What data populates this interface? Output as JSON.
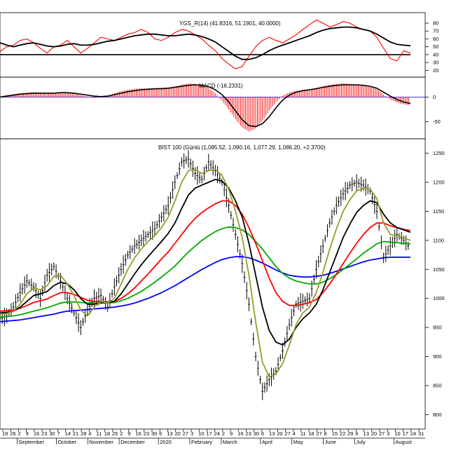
{
  "chart_data": [
    {
      "type": "line",
      "title": "YGS_R(14) (41.8316, 51.1901, 40.0000)",
      "ylim": [
        15,
        88
      ],
      "yticks": [
        20,
        30,
        40,
        50,
        60,
        70,
        80
      ],
      "reference_line": 40,
      "series": [
        {
          "color": "#ff0000",
          "values": [
            44,
            50,
            52,
            58,
            60,
            55,
            48,
            42,
            50,
            52,
            58,
            50,
            42,
            48,
            55,
            62,
            60,
            58,
            62,
            66,
            68,
            72,
            68,
            60,
            58,
            62,
            68,
            72,
            70,
            65,
            60,
            52,
            45,
            35,
            28,
            22,
            25,
            38,
            50,
            58,
            62,
            58,
            55,
            60,
            65,
            72,
            78,
            84,
            80,
            75,
            78,
            82,
            80,
            75,
            72,
            70,
            62,
            48,
            35,
            32,
            45,
            41.8
          ]
        },
        {
          "color": "#000000",
          "values": [
            55,
            52,
            50,
            52,
            54,
            55,
            53,
            51,
            50,
            51,
            53,
            54,
            52,
            52,
            53,
            55,
            57,
            58,
            60,
            62,
            64,
            65,
            66,
            66,
            65,
            64,
            64,
            65,
            66,
            65,
            63,
            60,
            56,
            50,
            44,
            38,
            34,
            34,
            36,
            40,
            45,
            49,
            52,
            55,
            58,
            61,
            64,
            68,
            71,
            73,
            74,
            75,
            75,
            74,
            72,
            70,
            66,
            61,
            56,
            53,
            52,
            51.2
          ]
        }
      ]
    },
    {
      "type": "bar",
      "title": "MACD (-16.2331)",
      "ylim": [
        -82,
        35
      ],
      "yticks": [
        0,
        -50
      ],
      "bar_color": "#ff0000",
      "values": [
        2,
        4,
        6,
        8,
        9,
        10,
        9,
        8,
        9,
        10,
        10,
        7,
        4,
        1,
        -2,
        0,
        3,
        8,
        12,
        15,
        17,
        18,
        18,
        18,
        19,
        20,
        22,
        25,
        28,
        27,
        24,
        18,
        8,
        -8,
        -25,
        -45,
        -62,
        -70,
        -64,
        -48,
        -28,
        -10,
        3,
        10,
        13,
        15,
        16,
        19,
        22,
        25,
        27,
        28,
        27,
        26,
        24,
        21,
        16,
        5,
        -5,
        -11,
        -15,
        -16.2
      ],
      "line_values": [
        0,
        2,
        4,
        6,
        7,
        8,
        8,
        8,
        8,
        9,
        9,
        8,
        6,
        4,
        2,
        1,
        2,
        5,
        8,
        11,
        13,
        15,
        16,
        17,
        17,
        18,
        20,
        22,
        24,
        25,
        24,
        21,
        15,
        5,
        -10,
        -28,
        -46,
        -58,
        -60,
        -54,
        -40,
        -22,
        -6,
        4,
        10,
        13,
        15,
        17,
        20,
        22,
        24,
        25,
        25,
        25,
        24,
        22,
        18,
        10,
        2,
        -5,
        -10,
        -13
      ]
    },
    {
      "type": "line",
      "title": "BIST 100 (Günlü (1,085.52, 1,090.16, 1,077.29, 1,086.20, +2.3700)",
      "ylim": [
        780,
        1270
      ],
      "yticks": [
        800,
        850,
        900,
        950,
        1000,
        1050,
        1100,
        1150,
        1200,
        1250
      ],
      "price_color": "#000000",
      "values": [
        965,
        970,
        985,
        1010,
        1030,
        1020,
        1000,
        1040,
        1055,
        1030,
        1000,
        975,
        950,
        980,
        1000,
        1005,
        985,
        1020,
        1050,
        1075,
        1090,
        1100,
        1110,
        1120,
        1140,
        1160,
        1200,
        1235,
        1240,
        1215,
        1205,
        1235,
        1220,
        1200,
        1160,
        1110,
        1060,
        990,
        900,
        840,
        860,
        875,
        910,
        955,
        990,
        995,
        1000,
        1050,
        1090,
        1130,
        1160,
        1180,
        1195,
        1200,
        1195,
        1185,
        1150,
        1070,
        1090,
        1110,
        1100,
        1086.2
      ],
      "series": [
        {
          "color": "#9a9a2a",
          "values": [
            972,
            974,
            978,
            990,
            1008,
            1018,
            1015,
            1022,
            1038,
            1040,
            1025,
            1005,
            980,
            970,
            985,
            995,
            992,
            1000,
            1025,
            1050,
            1070,
            1085,
            1098,
            1108,
            1122,
            1140,
            1168,
            1200,
            1220,
            1222,
            1215,
            1220,
            1222,
            1212,
            1188,
            1150,
            1105,
            1040,
            960,
            890,
            865,
            870,
            888,
            920,
            955,
            975,
            985,
            1010,
            1045,
            1085,
            1120,
            1150,
            1170,
            1185,
            1190,
            1188,
            1172,
            1130,
            1110,
            1108,
            1104,
            1100
          ]
        },
        {
          "color": "#000000",
          "values": [
            975,
            976,
            978,
            985,
            995,
            1005,
            1008,
            1012,
            1022,
            1028,
            1025,
            1015,
            1000,
            990,
            990,
            993,
            993,
            995,
            1008,
            1025,
            1042,
            1058,
            1072,
            1085,
            1098,
            1112,
            1130,
            1155,
            1178,
            1190,
            1195,
            1200,
            1205,
            1202,
            1190,
            1168,
            1140,
            1095,
            1040,
            985,
            945,
            925,
            920,
            930,
            950,
            965,
            975,
            990,
            1015,
            1045,
            1075,
            1105,
            1128,
            1148,
            1160,
            1168,
            1165,
            1145,
            1130,
            1122,
            1118,
            1114
          ]
        },
        {
          "color": "#ff0000",
          "values": [
            978,
            979,
            980,
            983,
            988,
            993,
            996,
            999,
            1005,
            1010,
            1010,
            1007,
            1002,
            997,
            995,
            995,
            994,
            995,
            1000,
            1008,
            1018,
            1030,
            1042,
            1055,
            1068,
            1080,
            1095,
            1110,
            1125,
            1138,
            1148,
            1156,
            1163,
            1168,
            1168,
            1160,
            1145,
            1122,
            1095,
            1065,
            1035,
            1010,
            995,
            988,
            988,
            990,
            993,
            998,
            1010,
            1025,
            1042,
            1060,
            1078,
            1095,
            1110,
            1122,
            1130,
            1130,
            1125,
            1122,
            1119,
            1117
          ]
        },
        {
          "color": "#00aa00",
          "values": [
            968,
            969,
            970,
            972,
            975,
            978,
            981,
            984,
            988,
            992,
            994,
            994,
            993,
            992,
            992,
            992,
            992,
            993,
            996,
            1000,
            1006,
            1012,
            1020,
            1028,
            1037,
            1046,
            1056,
            1068,
            1080,
            1090,
            1100,
            1108,
            1115,
            1120,
            1123,
            1122,
            1118,
            1110,
            1098,
            1085,
            1070,
            1055,
            1043,
            1035,
            1030,
            1027,
            1025,
            1025,
            1028,
            1034,
            1041,
            1050,
            1059,
            1068,
            1078,
            1086,
            1094,
            1098,
            1097,
            1096,
            1095,
            1094
          ]
        },
        {
          "color": "#0000ff",
          "values": [
            960,
            961,
            962,
            963,
            965,
            967,
            969,
            971,
            973,
            976,
            978,
            979,
            980,
            981,
            982,
            983,
            984,
            985,
            987,
            989,
            992,
            996,
            1000,
            1005,
            1010,
            1016,
            1022,
            1029,
            1036,
            1043,
            1050,
            1056,
            1062,
            1067,
            1070,
            1072,
            1072,
            1070,
            1066,
            1061,
            1055,
            1049,
            1044,
            1040,
            1038,
            1037,
            1037,
            1038,
            1040,
            1043,
            1047,
            1051,
            1055,
            1059,
            1063,
            1066,
            1068,
            1070,
            1071,
            1071,
            1071,
            1071
          ]
        }
      ]
    }
  ],
  "x_axis": {
    "day_labels": [
      "19",
      "26",
      "2",
      "9",
      "16",
      "23",
      "30",
      "7",
      "14",
      "21",
      "28",
      "4",
      "11",
      "18",
      "25",
      "2",
      "9",
      "16",
      "23",
      "30",
      "6",
      "13",
      "20",
      "27",
      "3",
      "10",
      "17",
      "24",
      "2",
      "9",
      "16",
      "23",
      "30",
      "6",
      "13",
      "20",
      "27",
      "4",
      "11",
      "18",
      "27",
      "8",
      "15",
      "22",
      "29",
      "6",
      "13",
      "20",
      "27",
      "3",
      "10",
      "17",
      "24",
      "31"
    ],
    "month_labels": [
      {
        "index": 2,
        "label": "September"
      },
      {
        "index": 7,
        "label": "October"
      },
      {
        "index": 11,
        "label": "November"
      },
      {
        "index": 15,
        "label": "December"
      },
      {
        "index": 20,
        "label": "2020"
      },
      {
        "index": 24,
        "label": "February"
      },
      {
        "index": 28,
        "label": "March"
      },
      {
        "index": 33,
        "label": "April"
      },
      {
        "index": 37,
        "label": "May"
      },
      {
        "index": 41,
        "label": "June"
      },
      {
        "index": 45,
        "label": "July"
      },
      {
        "index": 50,
        "label": "August"
      }
    ]
  }
}
